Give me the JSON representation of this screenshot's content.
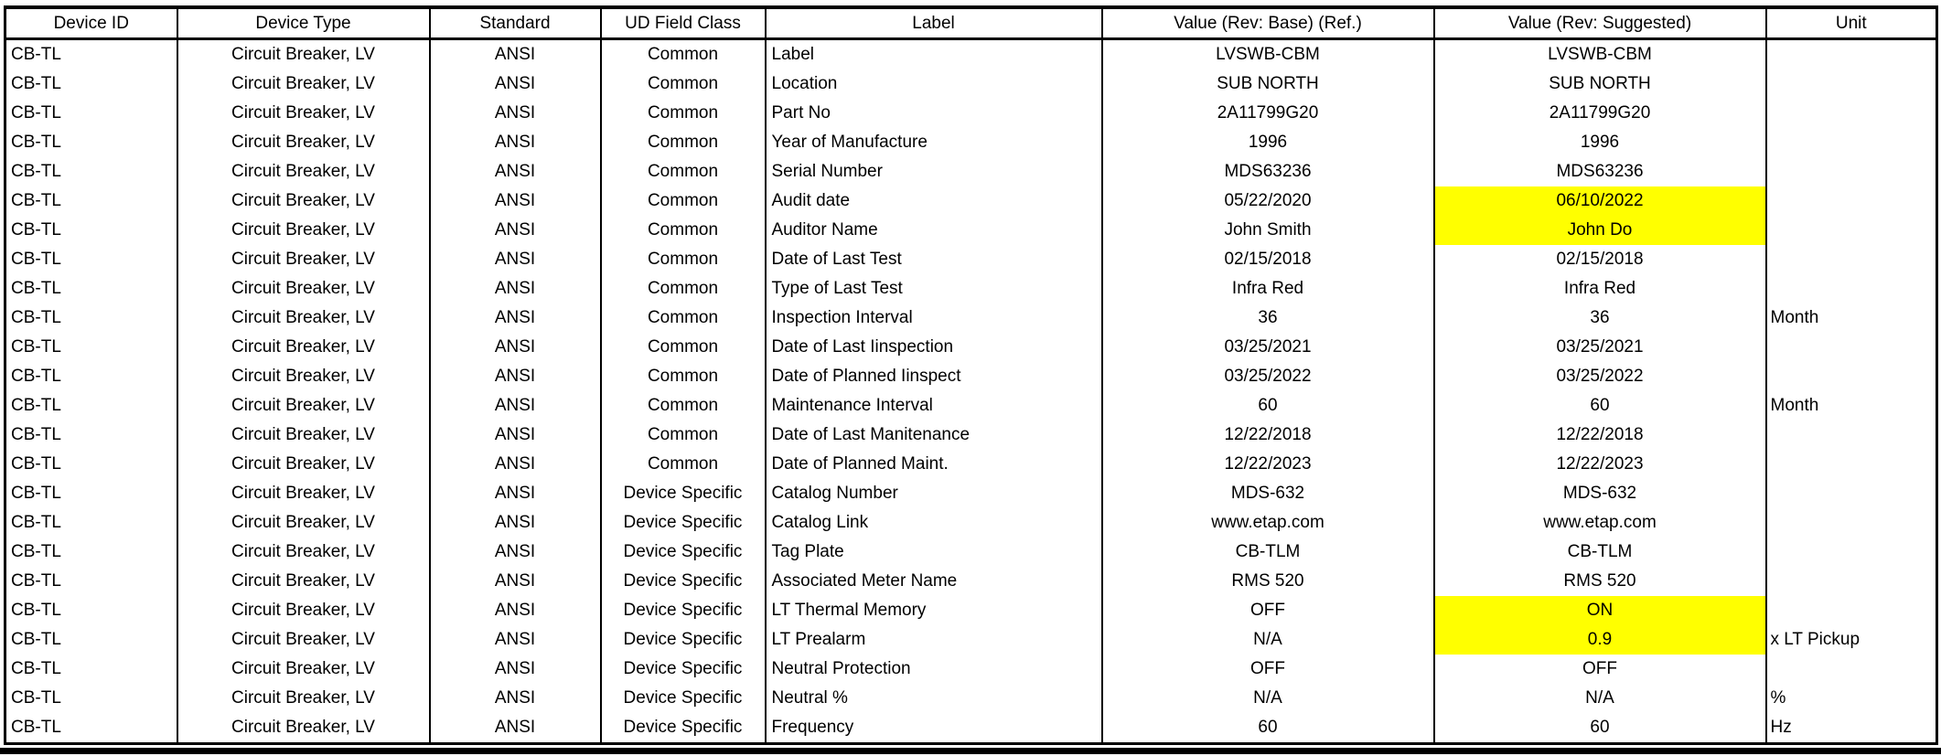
{
  "page": {
    "background": "#FFFFFF",
    "border_color": "#000000"
  },
  "table": {
    "highlight_color": "#FFFF00",
    "columns": [
      {
        "label": "Device ID"
      },
      {
        "label": "Device Type"
      },
      {
        "label": "Standard"
      },
      {
        "label": "UD Field Class"
      },
      {
        "label": "Label"
      },
      {
        "label": "Value (Rev: Base) (Ref.)"
      },
      {
        "label": "Value (Rev: Suggested)"
      },
      {
        "label": "Unit"
      }
    ],
    "rows": [
      {
        "device_id": "CB-TL",
        "device_type": "Circuit Breaker, LV",
        "standard": "ANSI",
        "ud_field_class": "Common",
        "label": "Label",
        "value_base": "LVSWB-CBM",
        "value_suggested": "LVSWB-CBM",
        "unit": "",
        "suggested_highlighted": false
      },
      {
        "device_id": "CB-TL",
        "device_type": "Circuit Breaker, LV",
        "standard": "ANSI",
        "ud_field_class": "Common",
        "label": "Location",
        "value_base": "SUB NORTH",
        "value_suggested": "SUB NORTH",
        "unit": "",
        "suggested_highlighted": false
      },
      {
        "device_id": "CB-TL",
        "device_type": "Circuit Breaker, LV",
        "standard": "ANSI",
        "ud_field_class": "Common",
        "label": "Part No",
        "value_base": "2A11799G20",
        "value_suggested": "2A11799G20",
        "unit": "",
        "suggested_highlighted": false
      },
      {
        "device_id": "CB-TL",
        "device_type": "Circuit Breaker, LV",
        "standard": "ANSI",
        "ud_field_class": "Common",
        "label": "Year of Manufacture",
        "value_base": "1996",
        "value_suggested": "1996",
        "unit": "",
        "suggested_highlighted": false
      },
      {
        "device_id": "CB-TL",
        "device_type": "Circuit Breaker, LV",
        "standard": "ANSI",
        "ud_field_class": "Common",
        "label": "Serial Number",
        "value_base": "MDS63236",
        "value_suggested": "MDS63236",
        "unit": "",
        "suggested_highlighted": false
      },
      {
        "device_id": "CB-TL",
        "device_type": "Circuit Breaker, LV",
        "standard": "ANSI",
        "ud_field_class": "Common",
        "label": "Audit date",
        "value_base": "05/22/2020",
        "value_suggested": "06/10/2022",
        "unit": "",
        "suggested_highlighted": true
      },
      {
        "device_id": "CB-TL",
        "device_type": "Circuit Breaker, LV",
        "standard": "ANSI",
        "ud_field_class": "Common",
        "label": "Auditor Name",
        "value_base": "John Smith",
        "value_suggested": "John Do",
        "unit": "",
        "suggested_highlighted": true
      },
      {
        "device_id": "CB-TL",
        "device_type": "Circuit Breaker, LV",
        "standard": "ANSI",
        "ud_field_class": "Common",
        "label": "Date of Last Test",
        "value_base": "02/15/2018",
        "value_suggested": "02/15/2018",
        "unit": "",
        "suggested_highlighted": false
      },
      {
        "device_id": "CB-TL",
        "device_type": "Circuit Breaker, LV",
        "standard": "ANSI",
        "ud_field_class": "Common",
        "label": "Type of Last Test",
        "value_base": "Infra Red",
        "value_suggested": "Infra Red",
        "unit": "",
        "suggested_highlighted": false
      },
      {
        "device_id": "CB-TL",
        "device_type": "Circuit Breaker, LV",
        "standard": "ANSI",
        "ud_field_class": "Common",
        "label": "Inspection Interval",
        "value_base": "36",
        "value_suggested": "36",
        "unit": "Month",
        "suggested_highlighted": false
      },
      {
        "device_id": "CB-TL",
        "device_type": "Circuit Breaker, LV",
        "standard": "ANSI",
        "ud_field_class": "Common",
        "label": "Date of Last Iinspection",
        "value_base": "03/25/2021",
        "value_suggested": "03/25/2021",
        "unit": "",
        "suggested_highlighted": false
      },
      {
        "device_id": "CB-TL",
        "device_type": "Circuit Breaker, LV",
        "standard": "ANSI",
        "ud_field_class": "Common",
        "label": "Date of Planned Iinspect",
        "value_base": "03/25/2022",
        "value_suggested": "03/25/2022",
        "unit": "",
        "suggested_highlighted": false
      },
      {
        "device_id": "CB-TL",
        "device_type": "Circuit Breaker, LV",
        "standard": "ANSI",
        "ud_field_class": "Common",
        "label": "Maintenance Interval",
        "value_base": "60",
        "value_suggested": "60",
        "unit": "Month",
        "suggested_highlighted": false
      },
      {
        "device_id": "CB-TL",
        "device_type": "Circuit Breaker, LV",
        "standard": "ANSI",
        "ud_field_class": "Common",
        "label": "Date of Last Manitenance",
        "value_base": "12/22/2018",
        "value_suggested": "12/22/2018",
        "unit": "",
        "suggested_highlighted": false
      },
      {
        "device_id": "CB-TL",
        "device_type": "Circuit Breaker, LV",
        "standard": "ANSI",
        "ud_field_class": "Common",
        "label": "Date of Planned Maint.",
        "value_base": "12/22/2023",
        "value_suggested": "12/22/2023",
        "unit": "",
        "suggested_highlighted": false
      },
      {
        "device_id": "CB-TL",
        "device_type": "Circuit Breaker, LV",
        "standard": "ANSI",
        "ud_field_class": "Device Specific",
        "label": "Catalog Number",
        "value_base": "MDS-632",
        "value_suggested": "MDS-632",
        "unit": "",
        "suggested_highlighted": false
      },
      {
        "device_id": "CB-TL",
        "device_type": "Circuit Breaker, LV",
        "standard": "ANSI",
        "ud_field_class": "Device Specific",
        "label": "Catalog Link",
        "value_base": "www.etap.com",
        "value_suggested": "www.etap.com",
        "unit": "",
        "suggested_highlighted": false
      },
      {
        "device_id": "CB-TL",
        "device_type": "Circuit Breaker, LV",
        "standard": "ANSI",
        "ud_field_class": "Device Specific",
        "label": "Tag Plate",
        "value_base": "CB-TLM",
        "value_suggested": "CB-TLM",
        "unit": "",
        "suggested_highlighted": false
      },
      {
        "device_id": "CB-TL",
        "device_type": "Circuit Breaker, LV",
        "standard": "ANSI",
        "ud_field_class": "Device Specific",
        "label": "Associated Meter Name",
        "value_base": "RMS 520",
        "value_suggested": "RMS 520",
        "unit": "",
        "suggested_highlighted": false
      },
      {
        "device_id": "CB-TL",
        "device_type": "Circuit Breaker, LV",
        "standard": "ANSI",
        "ud_field_class": "Device Specific",
        "label": "LT Thermal Memory",
        "value_base": "OFF",
        "value_suggested": "ON",
        "unit": "",
        "suggested_highlighted": true
      },
      {
        "device_id": "CB-TL",
        "device_type": "Circuit Breaker, LV",
        "standard": "ANSI",
        "ud_field_class": "Device Specific",
        "label": "LT Prealarm",
        "value_base": "N/A",
        "value_suggested": "0.9",
        "unit": "x LT Pickup",
        "suggested_highlighted": true
      },
      {
        "device_id": "CB-TL",
        "device_type": "Circuit Breaker, LV",
        "standard": "ANSI",
        "ud_field_class": "Device Specific",
        "label": "Neutral Protection",
        "value_base": "OFF",
        "value_suggested": "OFF",
        "unit": "",
        "suggested_highlighted": false
      },
      {
        "device_id": "CB-TL",
        "device_type": "Circuit Breaker, LV",
        "standard": "ANSI",
        "ud_field_class": "Device Specific",
        "label": "Neutral %",
        "value_base": "N/A",
        "value_suggested": "N/A",
        "unit": "%",
        "suggested_highlighted": false
      },
      {
        "device_id": "CB-TL",
        "device_type": "Circuit Breaker, LV",
        "standard": "ANSI",
        "ud_field_class": "Device Specific",
        "label": "Frequency",
        "value_base": "60",
        "value_suggested": "60",
        "unit": "Hz",
        "suggested_highlighted": false
      }
    ]
  }
}
